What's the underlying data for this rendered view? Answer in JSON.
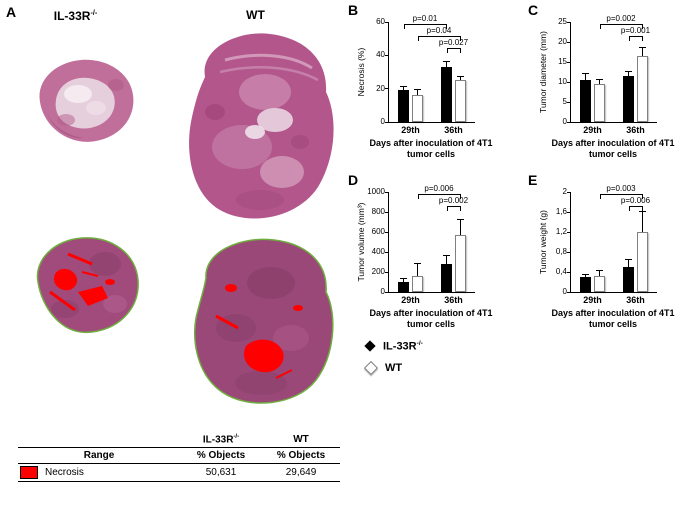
{
  "figure": {
    "panel_labels": {
      "a": "A",
      "b": "B",
      "c": "C",
      "d": "D",
      "e": "E"
    }
  },
  "panel_a": {
    "col1": {
      "base": "IL-33R",
      "sup": "-/-"
    },
    "col2": "WT"
  },
  "table": {
    "header_col1": {
      "base": "IL-33R",
      "sup": "-/-"
    },
    "header_col2": "WT",
    "subheader_range": "Range",
    "subheader_objects1": "% Objects",
    "subheader_objects2": "% Objects",
    "rows": [
      {
        "color": "#ff0000",
        "range": "Necrosis",
        "il33r_value": "50,631",
        "wt_value": "29,649"
      }
    ]
  },
  "legend": {
    "items": [
      {
        "symbol": "black-diamond",
        "base": "IL-33R",
        "sup": "-/-"
      },
      {
        "symbol": "white-diamond",
        "base": "WT",
        "sup": ""
      }
    ]
  },
  "chart_data": [
    {
      "panel": "B",
      "type": "bar",
      "ylabel": "Necrosis (%)",
      "xlabel_lines": [
        "Days after inoculation of 4T1",
        "tumor cells"
      ],
      "categories": [
        "29th",
        "36th"
      ],
      "series": [
        {
          "name": "IL-33R-/-",
          "color": "#000000",
          "values": [
            19,
            33
          ],
          "errors": [
            2,
            3
          ]
        },
        {
          "name": "WT",
          "color": "#ffffff",
          "values": [
            16,
            25
          ],
          "errors": [
            3,
            2
          ]
        }
      ],
      "ylim": [
        0,
        60
      ],
      "yticks": [
        0,
        20,
        40,
        60
      ],
      "ytick_labels": [
        "0",
        "20",
        "40",
        "60"
      ],
      "grid": false,
      "comparisons": [
        {
          "label": "p=0.01",
          "a": 0,
          "b": 2,
          "level": 0
        },
        {
          "label": "p=0.04",
          "a": 1,
          "b": 3,
          "level": 1
        },
        {
          "label": "p=0.027",
          "a": 2,
          "b": 3,
          "level": 2
        }
      ]
    },
    {
      "panel": "C",
      "type": "bar",
      "ylabel": "Tumor diameter (mm)",
      "xlabel_lines": [
        "Days after inoculation of 4T1",
        "tumor cells"
      ],
      "categories": [
        "29th",
        "36th"
      ],
      "series": [
        {
          "name": "IL-33R-/-",
          "color": "#000000",
          "values": [
            10.5,
            11.5
          ],
          "errors": [
            1.5,
            1
          ]
        },
        {
          "name": "WT",
          "color": "#ffffff",
          "values": [
            9.5,
            16.5
          ],
          "errors": [
            1,
            2
          ]
        }
      ],
      "ylim": [
        0,
        25
      ],
      "yticks": [
        0,
        5,
        10,
        15,
        20,
        25
      ],
      "ytick_labels": [
        "0",
        "5",
        "10",
        "15",
        "20",
        "25"
      ],
      "grid": false,
      "comparisons": [
        {
          "label": "p=0.002",
          "a": 1,
          "b": 3,
          "level": 0
        },
        {
          "label": "p=0.001",
          "a": 2,
          "b": 3,
          "level": 1
        }
      ]
    },
    {
      "panel": "D",
      "type": "bar",
      "ylabel": "Tumor volume (mm³)",
      "xlabel_lines": [
        "Days after inoculation of 4T1",
        "tumor cells"
      ],
      "categories": [
        "29th",
        "36th"
      ],
      "series": [
        {
          "name": "IL-33R-/-",
          "color": "#000000",
          "values": [
            100,
            280
          ],
          "errors": [
            30,
            80
          ]
        },
        {
          "name": "WT",
          "color": "#ffffff",
          "values": [
            160,
            570
          ],
          "errors": [
            120,
            150
          ]
        }
      ],
      "ylim": [
        0,
        1000
      ],
      "yticks": [
        0,
        200,
        400,
        600,
        800,
        1000
      ],
      "ytick_labels": [
        "0",
        "200",
        "400",
        "600",
        "800",
        "1000"
      ],
      "grid": false,
      "comparisons": [
        {
          "label": "p=0.006",
          "a": 1,
          "b": 3,
          "level": 0
        },
        {
          "label": "p=0.002",
          "a": 2,
          "b": 3,
          "level": 1
        }
      ]
    },
    {
      "panel": "E",
      "type": "bar",
      "ylabel": "Tumor weight (g)",
      "xlabel_lines": [
        "Days after inoculation of 4T1",
        "tumor cells"
      ],
      "categories": [
        "29th",
        "36th"
      ],
      "series": [
        {
          "name": "IL-33R-/-",
          "color": "#000000",
          "values": [
            0.3,
            0.5
          ],
          "errors": [
            0.05,
            0.15
          ]
        },
        {
          "name": "WT",
          "color": "#ffffff",
          "values": [
            0.32,
            1.2
          ],
          "errors": [
            0.1,
            0.4
          ]
        }
      ],
      "ylim": [
        0,
        2
      ],
      "yticks": [
        0,
        0.4,
        0.8,
        1.2,
        1.6,
        2
      ],
      "ytick_labels": [
        "0",
        "0,4",
        "0,8",
        "1,2",
        "1,6",
        "2"
      ],
      "grid": false,
      "comparisons": [
        {
          "label": "p=0.003",
          "a": 1,
          "b": 3,
          "level": 0
        },
        {
          "label": "p=0.006",
          "a": 2,
          "b": 3,
          "level": 1
        }
      ]
    }
  ]
}
